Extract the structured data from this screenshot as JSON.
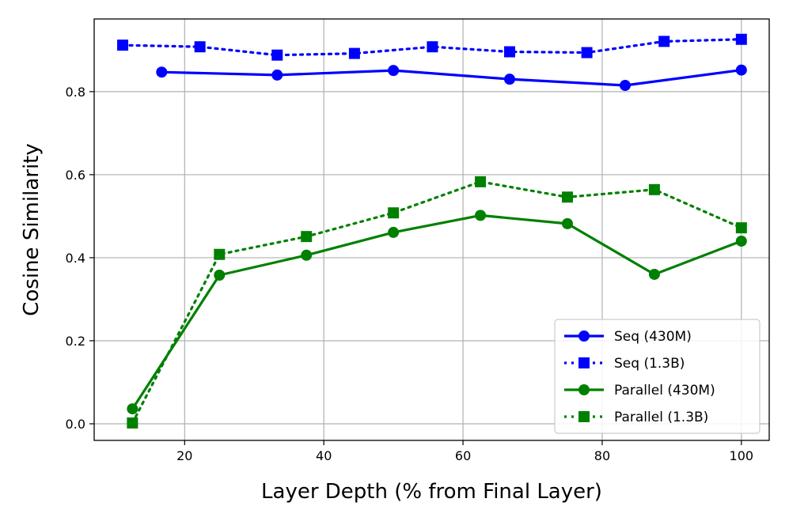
{
  "chart_data": {
    "type": "line",
    "xlabel": "Layer Depth (% from Final Layer)",
    "ylabel": "Cosine Similarity",
    "xlim": [
      7,
      104
    ],
    "ylim": [
      -0.04,
      0.975
    ],
    "xticks": [
      20,
      40,
      60,
      80,
      100
    ],
    "yticks": [
      0.0,
      0.2,
      0.4,
      0.6,
      0.8
    ],
    "xtick_labels": [
      "20",
      "40",
      "60",
      "80",
      "100"
    ],
    "ytick_labels": [
      "0.0",
      "0.2",
      "0.4",
      "0.6",
      "0.8"
    ],
    "grid": true,
    "legend_position": "lower-right",
    "series": [
      {
        "name": "Seq (430M)",
        "color": "#0000ff",
        "linestyle": "solid",
        "marker": "circle",
        "x": [
          16.7,
          33.3,
          50,
          66.7,
          83.3,
          100
        ],
        "y": [
          0.847,
          0.84,
          0.851,
          0.83,
          0.815,
          0.852
        ]
      },
      {
        "name": "Seq (1.3B)",
        "color": "#0000ff",
        "linestyle": "dotted",
        "marker": "square",
        "x": [
          11.1,
          22.2,
          33.3,
          44.4,
          55.6,
          66.7,
          77.8,
          88.9,
          100
        ],
        "y": [
          0.912,
          0.908,
          0.888,
          0.892,
          0.908,
          0.896,
          0.894,
          0.921,
          0.926
        ]
      },
      {
        "name": "Parallel (430M)",
        "color": "#008000",
        "linestyle": "solid",
        "marker": "circle",
        "x": [
          12.5,
          25,
          37.5,
          50,
          62.5,
          75,
          87.5,
          100
        ],
        "y": [
          0.036,
          0.358,
          0.406,
          0.461,
          0.502,
          0.482,
          0.36,
          0.44
        ]
      },
      {
        "name": "Parallel (1.3B)",
        "color": "#008000",
        "linestyle": "dotted",
        "marker": "square",
        "x": [
          12.5,
          25,
          37.5,
          50,
          62.5,
          75,
          87.5,
          100
        ],
        "y": [
          0.002,
          0.408,
          0.451,
          0.508,
          0.583,
          0.546,
          0.564,
          0.472
        ]
      }
    ]
  }
}
